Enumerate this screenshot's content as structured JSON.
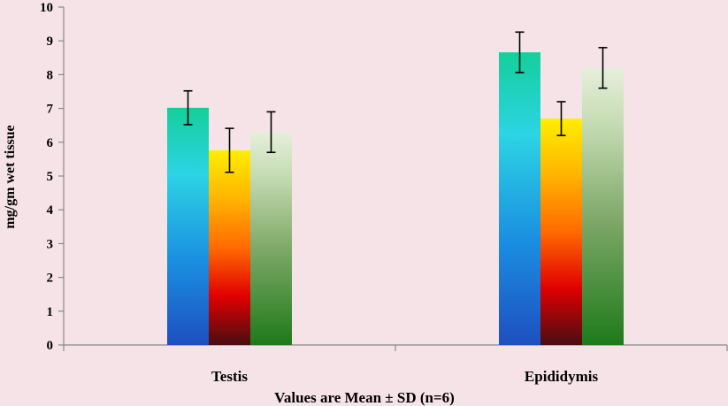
{
  "chart_data": {
    "type": "bar",
    "categories": [
      "Testis",
      "Epididymis"
    ],
    "series": [
      {
        "values": [
          7.02,
          8.66
        ],
        "errors": [
          0.5,
          0.6
        ],
        "fill": "spectrum-cool"
      },
      {
        "values": [
          5.76,
          6.7
        ],
        "errors": [
          0.65,
          0.5
        ],
        "fill": "spectrum-warm"
      },
      {
        "values": [
          6.3,
          8.2
        ],
        "errors": [
          0.6,
          0.6
        ],
        "fill": "green-gradient"
      }
    ],
    "ylabel": "mg/gm wet tissue",
    "ylim": [
      0,
      10
    ],
    "yticks": [
      0,
      1,
      2,
      3,
      4,
      5,
      6,
      7,
      8,
      9,
      10
    ],
    "xlabel": "Values are Mean ± SD (n=6)",
    "grid": false,
    "legend": false,
    "background": "#f6e3e8"
  }
}
